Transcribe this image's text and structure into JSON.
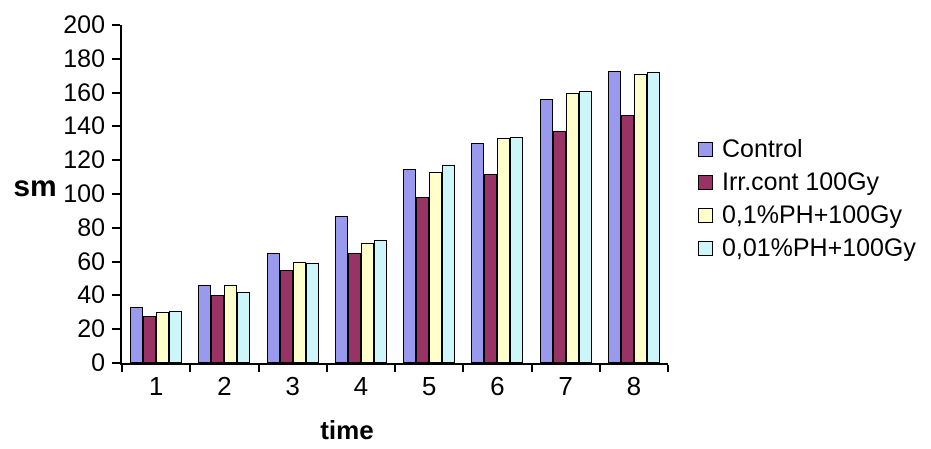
{
  "chart_data": {
    "type": "bar",
    "title": "",
    "xlabel": "time",
    "ylabel": "sm",
    "ylim": [
      0,
      200
    ],
    "yticks": [
      0,
      20,
      40,
      60,
      80,
      100,
      120,
      140,
      160,
      180,
      200
    ],
    "categories": [
      "1",
      "2",
      "3",
      "4",
      "5",
      "6",
      "7",
      "8"
    ],
    "series": [
      {
        "name": "Control",
        "color": "#9999EE",
        "values": [
          33,
          46,
          65,
          87,
          115,
          130,
          156,
          173
        ]
      },
      {
        "name": "Irr.cont 100Gy",
        "color": "#993366",
        "values": [
          28,
          40,
          55,
          65,
          98,
          112,
          137,
          147
        ]
      },
      {
        "name": "0,1%PH+100Gy",
        "color": "#FFFFCC",
        "values": [
          30,
          46,
          60,
          71,
          113,
          133,
          160,
          171
        ]
      },
      {
        "name": "0,01%PH+100Gy",
        "color": "#CCF6F9",
        "values": [
          31,
          42,
          59,
          73,
          117,
          134,
          161,
          172
        ]
      }
    ],
    "legend_position": "right",
    "grid": false,
    "background": "#FFFFFF",
    "axis_color": "#000000",
    "bar_border_color": "#000000"
  }
}
